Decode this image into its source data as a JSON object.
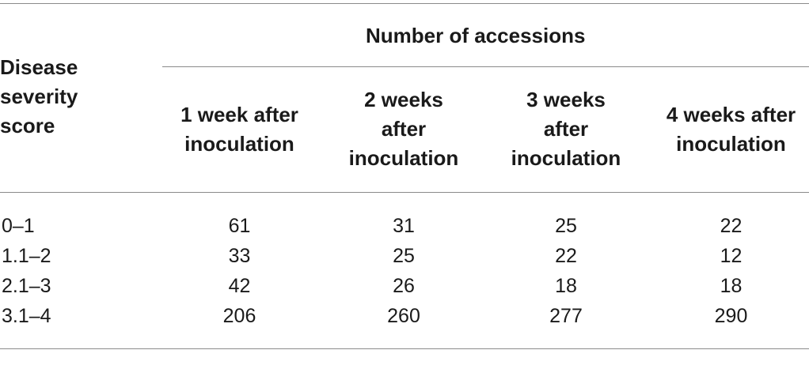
{
  "table": {
    "group_header": "Number of accessions",
    "stub_header": "Disease\nseverity\nscore",
    "columns": [
      "1 week after\ninoculation",
      "2 weeks\nafter\ninoculation",
      "3 weeks\nafter\ninoculation",
      "4 weeks after\ninoculation"
    ],
    "rows": [
      {
        "score": "0–1",
        "values": [
          "61",
          "31",
          "25",
          "22"
        ]
      },
      {
        "score": "1.1–2",
        "values": [
          "33",
          "25",
          "22",
          "12"
        ]
      },
      {
        "score": "2.1–3",
        "values": [
          "42",
          "26",
          "18",
          "18"
        ]
      },
      {
        "score": "3.1–4",
        "values": [
          "206",
          "260",
          "277",
          "290"
        ]
      }
    ]
  }
}
